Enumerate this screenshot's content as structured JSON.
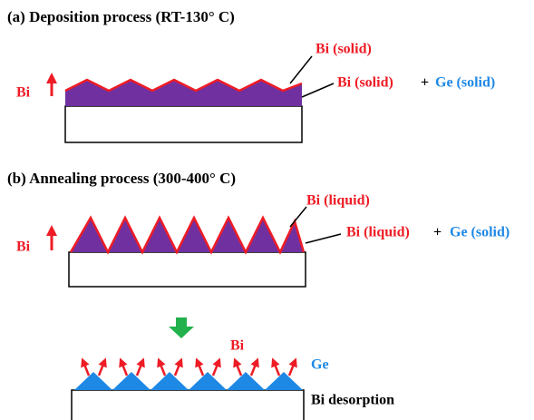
{
  "panel_a": {
    "title": "(a) Deposition process (RT-130° C)",
    "side_label": "Bi",
    "label_top": "Bi (solid)",
    "label_bottom": {
      "bi": "Bi (solid)",
      "plus": "+",
      "ge": "Ge (solid)"
    }
  },
  "panel_b": {
    "title": "(b) Annealing process (300-400° C)",
    "side_label": "Bi",
    "label_top": "Bi (liquid)",
    "label_bottom": {
      "bi": "Bi (liquid)",
      "plus": "+",
      "ge": "Ge (solid)"
    }
  },
  "panel_c": {
    "bi_label": "Bi",
    "ge_label": "Ge",
    "caption": "Bi desorption"
  }
}
